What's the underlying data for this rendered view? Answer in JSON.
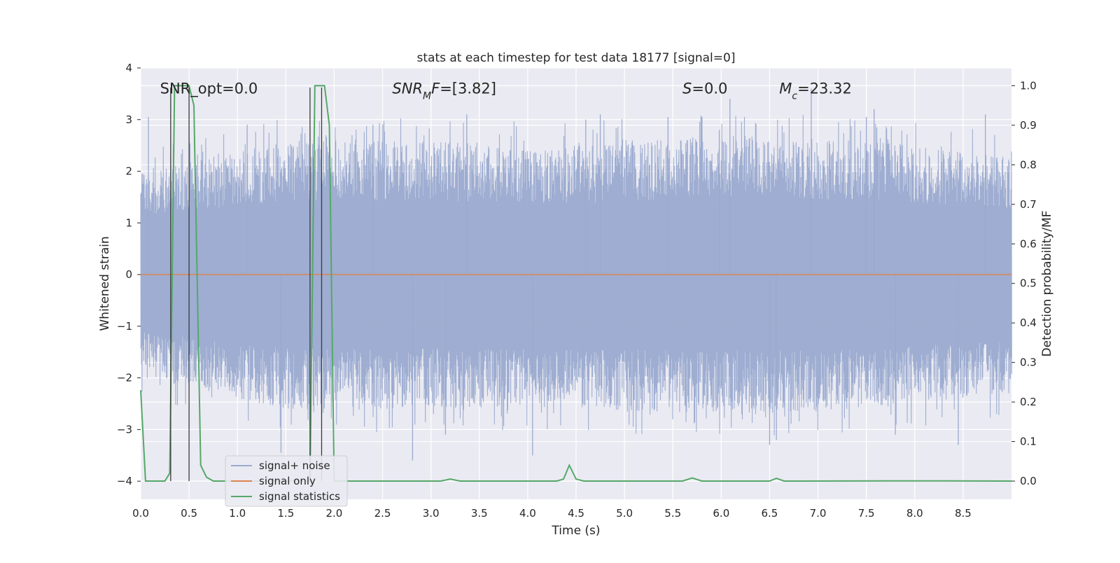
{
  "chart_data": {
    "type": "line",
    "title": "stats at each timestep for test data 18177 [signal=0]",
    "xlabel": "Time (s)",
    "ylabel": "Whitened strain",
    "y2label": "Detection probability/MF",
    "xlim": [
      0.0,
      9.0
    ],
    "ylim": [
      -4.35,
      4.0
    ],
    "y2lim": [
      -0.046,
      1.045
    ],
    "xticks": [
      0.0,
      0.5,
      1.0,
      1.5,
      2.0,
      2.5,
      3.0,
      3.5,
      4.0,
      4.5,
      5.0,
      5.5,
      6.0,
      6.5,
      7.0,
      7.5,
      8.0,
      8.5
    ],
    "xtick_labels": [
      "0.0",
      "0.5",
      "1.0",
      "1.5",
      "2.0",
      "2.5",
      "3.0",
      "3.5",
      "4.0",
      "4.5",
      "5.0",
      "5.5",
      "6.0",
      "6.5",
      "7.0",
      "7.5",
      "8.0",
      "8.5"
    ],
    "yticks": [
      4,
      3,
      2,
      1,
      0,
      -1,
      -2,
      -3,
      -4
    ],
    "ytick_labels": [
      "4",
      "3",
      "2",
      "1",
      "0",
      "−1",
      "−2",
      "−3",
      "−4"
    ],
    "y2ticks": [
      1.0,
      0.9,
      0.8,
      0.7,
      0.6,
      0.5,
      0.4,
      0.3,
      0.2,
      0.1,
      0.0
    ],
    "y2tick_labels": [
      "1.0",
      "0.9",
      "0.8",
      "0.7",
      "0.6",
      "0.5",
      "0.4",
      "0.3",
      "0.2",
      "0.1",
      "0.0"
    ],
    "grid": true,
    "legend_position": "lower-left",
    "series": [
      {
        "name": "signal+ noise",
        "axis": "left",
        "color": "#9aaacf",
        "style": "dense noise trace",
        "envelope_upper": [
          [
            0.0,
            2.0
          ],
          [
            1.5,
            2.6
          ],
          [
            3.0,
            2.6
          ],
          [
            4.5,
            2.5
          ],
          [
            6.0,
            2.7
          ],
          [
            7.5,
            2.6
          ],
          [
            9.0,
            2.3
          ]
        ],
        "envelope_lower": [
          [
            0.0,
            -2.0
          ],
          [
            1.5,
            -2.6
          ],
          [
            3.0,
            -2.6
          ],
          [
            4.5,
            -2.6
          ],
          [
            6.0,
            -2.7
          ],
          [
            7.5,
            -2.6
          ],
          [
            9.0,
            -2.3
          ]
        ],
        "peaks": [
          [
            0.08,
            3.05
          ],
          [
            0.5,
            2.6
          ],
          [
            1.1,
            2.9
          ],
          [
            1.45,
            -3.45
          ],
          [
            2.4,
            2.9
          ],
          [
            2.81,
            -3.6
          ],
          [
            3.15,
            -3.1
          ],
          [
            3.37,
            3.1
          ],
          [
            4.05,
            -3.5
          ],
          [
            4.6,
            3.0
          ],
          [
            4.75,
            3.1
          ],
          [
            5.45,
            3.05
          ],
          [
            5.98,
            2.8
          ],
          [
            6.09,
            3.4
          ],
          [
            6.5,
            -3.3
          ],
          [
            6.57,
            -3.2
          ],
          [
            6.93,
            3.6
          ],
          [
            7.5,
            3.05
          ],
          [
            7.58,
            3.2
          ],
          [
            7.8,
            -3.1
          ],
          [
            8.45,
            -3.3
          ],
          [
            8.73,
            3.1
          ]
        ]
      },
      {
        "name": "signal only",
        "axis": "left",
        "color": "#dd8452",
        "x": [
          0.0,
          9.0
        ],
        "y": [
          0.0,
          0.0
        ]
      },
      {
        "name": "signal statistics",
        "axis": "right",
        "color": "#55a868",
        "x": [
          0.0,
          0.05,
          0.1,
          0.2,
          0.25,
          0.3,
          0.35,
          0.4,
          0.45,
          0.5,
          0.55,
          0.62,
          0.68,
          0.75,
          0.8,
          1.7,
          1.75,
          1.8,
          1.85,
          1.9,
          1.95,
          2.0,
          3.1,
          3.2,
          3.3,
          4.3,
          4.37,
          4.43,
          4.5,
          4.58,
          5.6,
          5.7,
          5.8,
          6.5,
          6.57,
          6.65,
          8.3,
          9.0
        ],
        "y": [
          0.23,
          0.0,
          0.0,
          0.0,
          0.0,
          0.02,
          1.0,
          1.0,
          1.0,
          1.0,
          0.95,
          0.04,
          0.01,
          0.0,
          0.0,
          0.0,
          0.0,
          1.0,
          1.0,
          1.0,
          0.9,
          0.0,
          0.0,
          0.005,
          0.0,
          0.0,
          0.005,
          0.04,
          0.005,
          0.0,
          0.0,
          0.008,
          0.0,
          0.0,
          0.007,
          0.0,
          0.0005,
          0.0
        ]
      }
    ],
    "vlines": [
      {
        "x": 0.31,
        "y": [
          -4.0,
          3.62
        ],
        "color": "#3a3a3a"
      },
      {
        "x": 0.5,
        "y": [
          -4.0,
          3.62
        ],
        "color": "#3a3a3a"
      },
      {
        "x": 1.75,
        "y": [
          -4.0,
          3.62
        ],
        "color": "#3a3a3a"
      },
      {
        "x": 1.87,
        "y": [
          -4.0,
          3.62
        ],
        "color": "#3a3a3a"
      }
    ],
    "annotations": [
      {
        "id": "snr-opt",
        "x": 0.2,
        "y": 3.6,
        "parts": [
          {
            "t": "SNR_opt=0.0",
            "italic": false
          }
        ]
      },
      {
        "id": "snr-mf",
        "x": 2.6,
        "y": 3.6,
        "parts": [
          {
            "t": "SNR",
            "italic": true
          },
          {
            "t": "M",
            "italic": true,
            "sub": true
          },
          {
            "t": "F",
            "italic": true
          },
          {
            "t": "=[3.82]",
            "italic": false
          }
        ]
      },
      {
        "id": "s-val",
        "x": 5.6,
        "y": 3.6,
        "parts": [
          {
            "t": "S",
            "italic": true
          },
          {
            "t": "=0.0",
            "italic": false
          }
        ]
      },
      {
        "id": "mc-val",
        "x": 6.6,
        "y": 3.6,
        "parts": [
          {
            "t": "M",
            "italic": true
          },
          {
            "t": "c",
            "italic": true,
            "sub": true
          },
          {
            "t": "=23.32",
            "italic": false
          }
        ]
      }
    ],
    "legend": [
      {
        "label": "signal+ noise",
        "color": "#9aaacf"
      },
      {
        "label": "signal only",
        "color": "#dd8452"
      },
      {
        "label": "signal statistics",
        "color": "#55a868"
      }
    ]
  }
}
